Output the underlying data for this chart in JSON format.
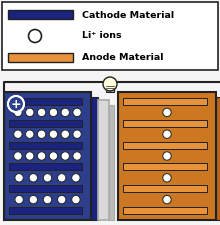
{
  "background": "#f5f5f5",
  "cathode_color": "#1a237e",
  "cathode_frame_color": "#2c3e8c",
  "cathode_back_color": "#1a237e",
  "anode_color": "#e8923a",
  "anode_frame_color": "#cc7722",
  "anode_back_color": "#b5651d",
  "separator_color": "#d8d8d8",
  "separator_edge": "#aaaaaa",
  "separator_back": "#bbbbbb",
  "wire_color": "#222222",
  "outline_color": "#222222",
  "legend_cathode_label": "Cathode Material",
  "legend_ion_label": "Li⁺ ions",
  "legend_anode_label": "Anode Material",
  "cathode_ions_per_row": [
    6,
    6,
    6,
    5,
    5
  ],
  "anode_ions_per_row": [
    1,
    1,
    1,
    1,
    1
  ]
}
